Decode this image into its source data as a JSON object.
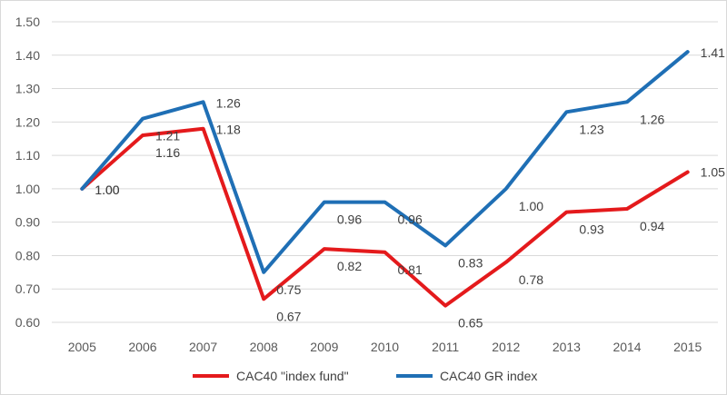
{
  "chart_data": {
    "type": "line",
    "title": "",
    "xlabel": "",
    "ylabel": "",
    "categories": [
      "2005",
      "2006",
      "2007",
      "2008",
      "2009",
      "2010",
      "2011",
      "2012",
      "2013",
      "2014",
      "2015"
    ],
    "ylim": [
      0.6,
      1.5
    ],
    "yticks": [
      "0.60",
      "0.70",
      "0.80",
      "0.90",
      "1.00",
      "1.10",
      "1.20",
      "1.30",
      "1.40",
      "1.50"
    ],
    "grid": true,
    "legend_position": "bottom",
    "series": [
      {
        "name": "CAC40 \"index fund\"",
        "color": "#e41a1c",
        "values": [
          1.0,
          1.16,
          1.18,
          0.67,
          0.82,
          0.81,
          0.65,
          0.78,
          0.93,
          0.94,
          1.05
        ],
        "labels": [
          "1.00",
          "1.16",
          "1.18",
          "0.67",
          "0.82",
          "0.81",
          "0.65",
          "0.78",
          "0.93",
          "0.94",
          "1.05"
        ]
      },
      {
        "name": "CAC40 GR index",
        "color": "#1f6fb5",
        "values": [
          1.0,
          1.21,
          1.26,
          0.75,
          0.96,
          0.96,
          0.83,
          1.0,
          1.23,
          1.26,
          1.41
        ],
        "labels": [
          "1.00",
          "1.21",
          "1.26",
          "0.75",
          "0.96",
          "0.96",
          "0.83",
          "1.00",
          "1.23",
          "1.26",
          "1.41"
        ]
      }
    ]
  }
}
